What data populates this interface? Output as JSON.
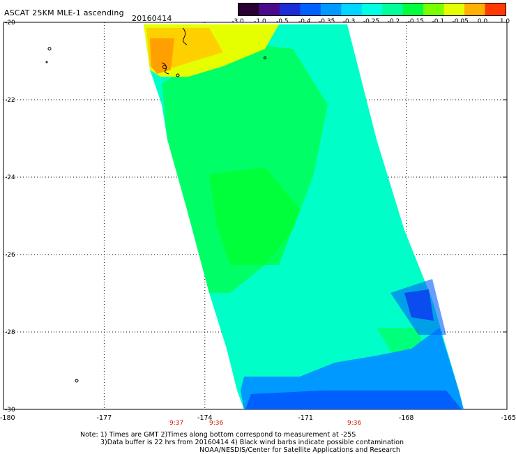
{
  "header": {
    "title": "ASCAT 25KM MLE-1 ascending",
    "date": "20160414"
  },
  "colorbar": {
    "labels": [
      "-3.0",
      "-1.0",
      "-0.5",
      "-0.4",
      "-0.35",
      "-0.3",
      "-0.25",
      "-0.2",
      "-0.15",
      "-0.1",
      "-0.05",
      "0.0",
      "1.0"
    ],
    "colors": [
      "#2a0033",
      "#4b0a8c",
      "#1a2dd6",
      "#0060ff",
      "#0099ff",
      "#00d6ff",
      "#00ffe0",
      "#00ff9a",
      "#00ff3c",
      "#7aff00",
      "#e6ff00",
      "#ffb000",
      "#ff3a00"
    ]
  },
  "map": {
    "lat_labels": [
      "-20",
      "-22",
      "-24",
      "-26",
      "-28",
      "-30"
    ],
    "lon_labels": [
      "-180",
      "-177",
      "-174",
      "-171",
      "-168",
      "-165"
    ],
    "time_labels": [
      "9:37",
      "9:36",
      "9:36"
    ]
  },
  "footer": {
    "line1": "Note: 1) Times are GMT  2)Times along bottom correspond to measurement at -25S",
    "line2": "3)Data buffer is 22 hrs from 20160414  4) Black wind barbs indicate possible contamination",
    "line3": "NOAA/NESDIS/Center for Satellite Applications and Research"
  }
}
